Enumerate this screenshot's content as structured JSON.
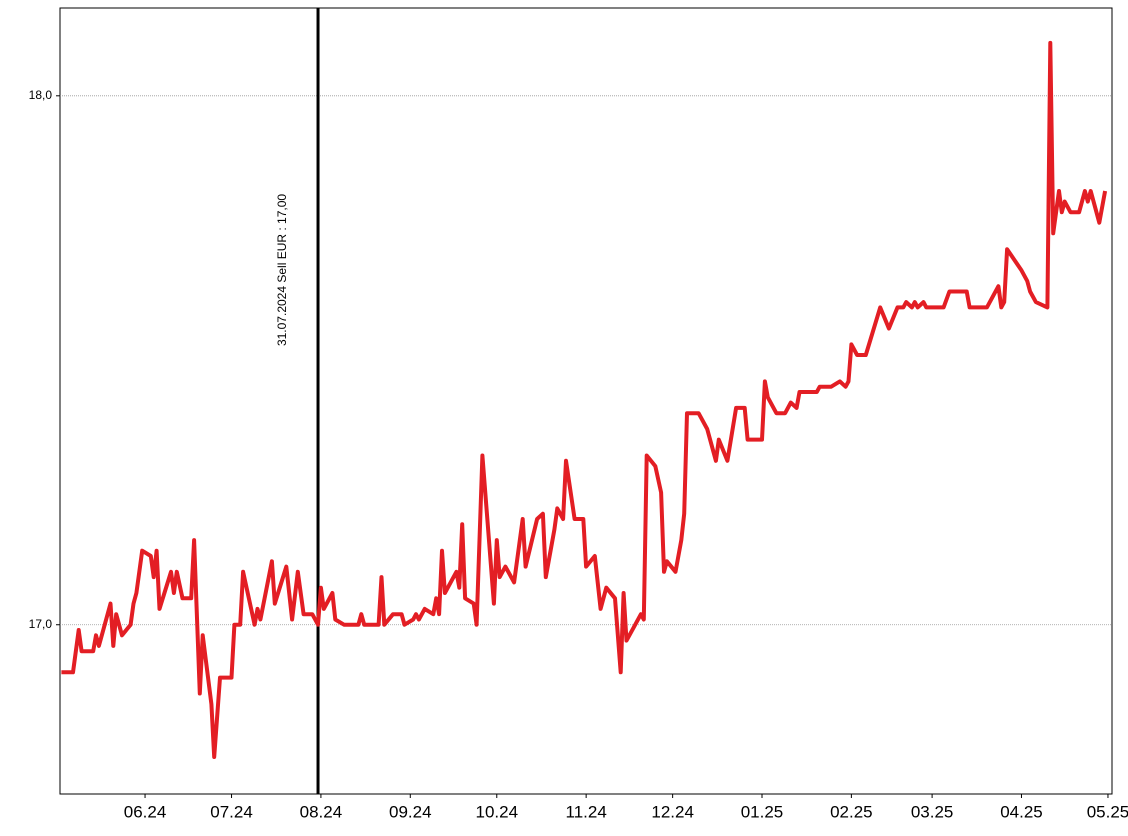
{
  "chart_data": {
    "type": "line",
    "color": "#e31e24",
    "grid": true,
    "x": [
      -29,
      -25,
      -23,
      -22,
      -18,
      -17,
      -16,
      -12,
      -11,
      -10,
      -8,
      -5,
      -4,
      -3,
      -1,
      2,
      3,
      4,
      5,
      9,
      10,
      11,
      13,
      16,
      17,
      19,
      20,
      23,
      24,
      26,
      30,
      31,
      33,
      34,
      38,
      39,
      40,
      44,
      45,
      49,
      51,
      53,
      55,
      58,
      60,
      61,
      62,
      65,
      66,
      69,
      74,
      75,
      76,
      81,
      82,
      83,
      86,
      89,
      90,
      93,
      94,
      95,
      97,
      100,
      101,
      102,
      103,
      104,
      108,
      109,
      110,
      111,
      114,
      115,
      117,
      121,
      122,
      123,
      125,
      128,
      131,
      132,
      136,
      138,
      139,
      142,
      143,
      145,
      146,
      149,
      152,
      153,
      156,
      158,
      160,
      163,
      165,
      166,
      167,
      170,
      172,
      173,
      174,
      177,
      179,
      180,
      181,
      184,
      186,
      187,
      188,
      192,
      195,
      198,
      199,
      202,
      205,
      208,
      209,
      214,
      215,
      216,
      219,
      222,
      224,
      226,
      227,
      233,
      234,
      238,
      241,
      243,
      244,
      245,
      247,
      250,
      255,
      258,
      261,
      263,
      264,
      266,
      267,
      268,
      270,
      271,
      277,
      279,
      285,
      286,
      292,
      296,
      297,
      298,
      299,
      304,
      306,
      307,
      309,
      313,
      314,
      315,
      317,
      318,
      319,
      321,
      324,
      326,
      327,
      328,
      331,
      333
    ],
    "values": [
      16.91,
      16.91,
      16.99,
      16.95,
      16.95,
      16.98,
      16.96,
      17.04,
      16.96,
      17.02,
      16.98,
      17.0,
      17.04,
      17.06,
      17.14,
      17.13,
      17.09,
      17.14,
      17.03,
      17.1,
      17.06,
      17.1,
      17.05,
      17.05,
      17.16,
      16.87,
      16.98,
      16.85,
      16.75,
      16.9,
      16.9,
      17.0,
      17.0,
      17.1,
      17.0,
      17.03,
      17.01,
      17.12,
      17.04,
      17.11,
      17.01,
      17.1,
      17.02,
      17.02,
      17.0,
      17.07,
      17.03,
      17.06,
      17.01,
      17.0,
      17.0,
      17.02,
      17.0,
      17.0,
      17.09,
      17.0,
      17.02,
      17.02,
      17.0,
      17.01,
      17.02,
      17.01,
      17.03,
      17.02,
      17.05,
      17.02,
      17.14,
      17.06,
      17.1,
      17.07,
      17.19,
      17.05,
      17.04,
      17.0,
      17.32,
      17.04,
      17.16,
      17.09,
      17.11,
      17.08,
      17.2,
      17.11,
      17.2,
      17.21,
      17.09,
      17.18,
      17.22,
      17.2,
      17.31,
      17.2,
      17.2,
      17.11,
      17.13,
      17.03,
      17.07,
      17.05,
      16.91,
      17.06,
      16.97,
      17.0,
      17.02,
      17.01,
      17.32,
      17.3,
      17.25,
      17.1,
      17.12,
      17.1,
      17.16,
      17.21,
      17.4,
      17.4,
      17.37,
      17.31,
      17.35,
      17.31,
      17.41,
      17.41,
      17.35,
      17.35,
      17.46,
      17.43,
      17.4,
      17.4,
      17.42,
      17.41,
      17.44,
      17.44,
      17.45,
      17.45,
      17.46,
      17.45,
      17.46,
      17.53,
      17.51,
      17.51,
      17.6,
      17.56,
      17.6,
      17.6,
      17.61,
      17.6,
      17.61,
      17.6,
      17.61,
      17.6,
      17.6,
      17.63,
      17.63,
      17.6,
      17.6,
      17.64,
      17.6,
      17.61,
      17.71,
      17.67,
      17.65,
      17.63,
      17.61,
      17.6,
      18.1,
      17.74,
      17.82,
      17.78,
      17.8,
      17.78,
      17.78,
      17.82,
      17.8,
      17.82,
      17.76,
      17.82
    ],
    "xlim": [
      -29.5,
      335.4
    ],
    "xticks": [
      {
        "value": 0,
        "label": "06.24"
      },
      {
        "value": 30,
        "label": "07.24"
      },
      {
        "value": 61,
        "label": "08.24"
      },
      {
        "value": 92,
        "label": "09.24"
      },
      {
        "value": 122,
        "label": "10.24"
      },
      {
        "value": 153,
        "label": "11.24"
      },
      {
        "value": 183,
        "label": "12.24"
      },
      {
        "value": 214,
        "label": "01.25"
      },
      {
        "value": 245,
        "label": "02.25"
      },
      {
        "value": 273,
        "label": "03.25"
      },
      {
        "value": 304,
        "label": "04.25"
      },
      {
        "value": 334,
        "label": "05.25"
      }
    ],
    "ylim": [
      16.68,
      18.166
    ],
    "yticks": [
      {
        "value": 17,
        "label": "17,0"
      },
      {
        "value": 18,
        "label": "18,0"
      }
    ],
    "annotations": [
      {
        "text": "31.07.2024 Sell EUR : 17,00",
        "x": 60
      }
    ]
  }
}
